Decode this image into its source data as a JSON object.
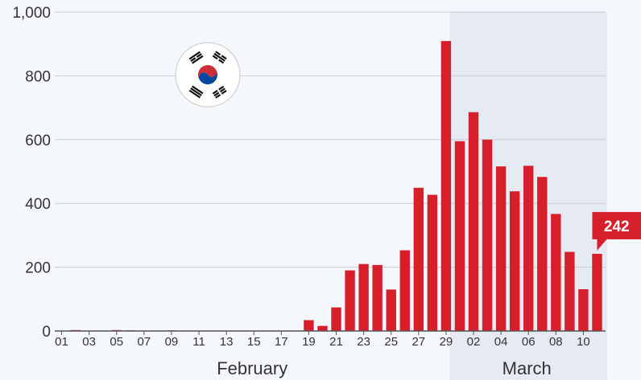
{
  "chart_data": {
    "type": "bar",
    "x": [
      "01",
      "02",
      "03",
      "04",
      "05",
      "06",
      "07",
      "08",
      "09",
      "10",
      "11",
      "12",
      "13",
      "14",
      "15",
      "16",
      "17",
      "18",
      "19",
      "20",
      "21",
      "22",
      "23",
      "24",
      "25",
      "26",
      "27",
      "28",
      "29",
      "01",
      "02",
      "03",
      "04",
      "05",
      "06",
      "07",
      "08",
      "09",
      "10",
      "11"
    ],
    "month": [
      "February",
      "February",
      "February",
      "February",
      "February",
      "February",
      "February",
      "February",
      "February",
      "February",
      "February",
      "February",
      "February",
      "February",
      "February",
      "February",
      "February",
      "February",
      "February",
      "February",
      "February",
      "February",
      "February",
      "February",
      "February",
      "February",
      "February",
      "February",
      "February",
      "March",
      "March",
      "March",
      "March",
      "March",
      "March",
      "March",
      "March",
      "March",
      "March",
      "March"
    ],
    "values": [
      0,
      3,
      0,
      0,
      3,
      2,
      0,
      0,
      2,
      0,
      0,
      0,
      0,
      0,
      0,
      0,
      0,
      1,
      34,
      16,
      74,
      190,
      210,
      207,
      130,
      253,
      449,
      427,
      909,
      595,
      686,
      600,
      516,
      438,
      518,
      483,
      367,
      248,
      131,
      242
    ],
    "x_tick_labels": [
      "01",
      "03",
      "05",
      "07",
      "09",
      "11",
      "13",
      "15",
      "17",
      "19",
      "21",
      "23",
      "25",
      "27",
      "29",
      "02",
      "04",
      "06",
      "08",
      "10"
    ],
    "y_ticks": [
      "0",
      "200",
      "400",
      "600",
      "800",
      "1,000"
    ],
    "ylim": [
      0,
      1000
    ],
    "month_labels": [
      "February",
      "March"
    ],
    "highlight_label": "242",
    "grid": true,
    "legend": "none",
    "title": "",
    "xlabel": "",
    "ylabel": ""
  },
  "colors": {
    "bar": "#d71f2b",
    "march_shade": "#e6eaf3",
    "grid": "#c8ccd4",
    "axis": "#555555",
    "background": "#f4f7fb"
  },
  "flag_icon": "south-korea-flag-icon"
}
